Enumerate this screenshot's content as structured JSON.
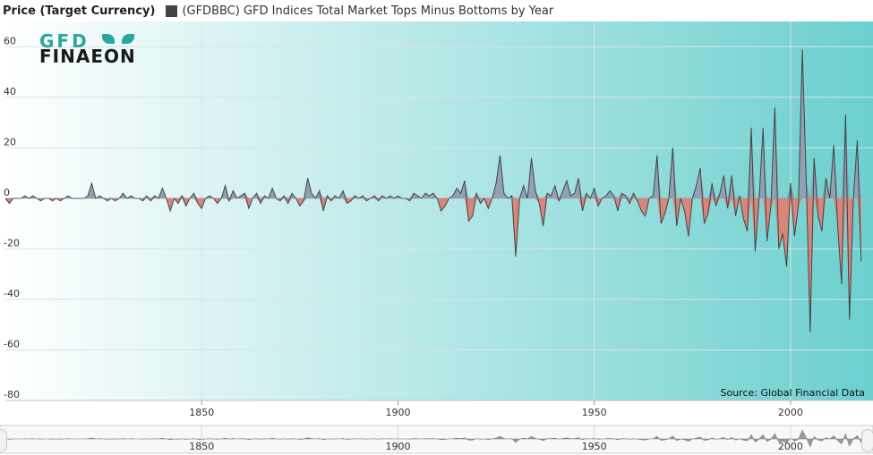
{
  "header": {
    "y_title": "Price (Target Currency)",
    "legend_label": "(GFDBBC) GFD Indices Total Market Tops Minus Bottoms by Year",
    "legend_color": "#444444"
  },
  "logo": {
    "line1": "GFD",
    "line2": "FINAEON"
  },
  "source": "Source: Global Financial Data",
  "colors": {
    "positive_fill": "#8fa1b3",
    "negative_fill": "#d7867c",
    "line": "#444444",
    "bg_left": "#ffffff",
    "bg_right": "#6ccfcf"
  },
  "chart_data": {
    "type": "area",
    "title": "(GFDBBC) GFD Indices Total Market Tops Minus Bottoms by Year",
    "ylabel": "Price (Target Currency)",
    "xlabel": "",
    "xlim": [
      1800,
      2021
    ],
    "ylim": [
      -80,
      70
    ],
    "x_ticks": [
      1850,
      1900,
      1950,
      2000
    ],
    "y_ticks": [
      60,
      40,
      20,
      0,
      -20,
      -40,
      -60,
      -80
    ],
    "grid": true,
    "legend": "top-left",
    "points": [
      [
        1800,
        0
      ],
      [
        1801,
        -2
      ],
      [
        1802,
        0
      ],
      [
        1803,
        0
      ],
      [
        1804,
        0
      ],
      [
        1805,
        1
      ],
      [
        1806,
        0
      ],
      [
        1807,
        1
      ],
      [
        1808,
        0
      ],
      [
        1809,
        -1
      ],
      [
        1810,
        0
      ],
      [
        1811,
        0
      ],
      [
        1812,
        -1
      ],
      [
        1813,
        0
      ],
      [
        1814,
        -1
      ],
      [
        1815,
        0
      ],
      [
        1816,
        1
      ],
      [
        1817,
        0
      ],
      [
        1818,
        0
      ],
      [
        1819,
        0
      ],
      [
        1820,
        0
      ],
      [
        1821,
        1
      ],
      [
        1822,
        6
      ],
      [
        1823,
        0
      ],
      [
        1824,
        1
      ],
      [
        1825,
        0
      ],
      [
        1826,
        -1
      ],
      [
        1827,
        0
      ],
      [
        1828,
        -1
      ],
      [
        1829,
        0
      ],
      [
        1830,
        2
      ],
      [
        1831,
        0
      ],
      [
        1832,
        1
      ],
      [
        1833,
        0
      ],
      [
        1834,
        0
      ],
      [
        1835,
        -1
      ],
      [
        1836,
        1
      ],
      [
        1837,
        -1
      ],
      [
        1838,
        1
      ],
      [
        1839,
        0
      ],
      [
        1840,
        4
      ],
      [
        1841,
        0
      ],
      [
        1842,
        -5
      ],
      [
        1843,
        0
      ],
      [
        1844,
        -2
      ],
      [
        1845,
        1
      ],
      [
        1846,
        -3
      ],
      [
        1847,
        0
      ],
      [
        1848,
        2
      ],
      [
        1849,
        -2
      ],
      [
        1850,
        -4
      ],
      [
        1851,
        0
      ],
      [
        1852,
        1
      ],
      [
        1853,
        0
      ],
      [
        1854,
        -2
      ],
      [
        1855,
        0
      ],
      [
        1856,
        5
      ],
      [
        1857,
        -1
      ],
      [
        1858,
        3
      ],
      [
        1859,
        0
      ],
      [
        1860,
        1
      ],
      [
        1861,
        2
      ],
      [
        1862,
        -4
      ],
      [
        1863,
        0
      ],
      [
        1864,
        2
      ],
      [
        1865,
        -2
      ],
      [
        1866,
        1
      ],
      [
        1867,
        0
      ],
      [
        1868,
        4
      ],
      [
        1869,
        0
      ],
      [
        1870,
        -1
      ],
      [
        1871,
        1
      ],
      [
        1872,
        -2
      ],
      [
        1873,
        2
      ],
      [
        1874,
        0
      ],
      [
        1875,
        -3
      ],
      [
        1876,
        -1
      ],
      [
        1877,
        8
      ],
      [
        1878,
        2
      ],
      [
        1879,
        0
      ],
      [
        1880,
        3
      ],
      [
        1881,
        -5
      ],
      [
        1882,
        1
      ],
      [
        1883,
        -1
      ],
      [
        1884,
        1
      ],
      [
        1885,
        0
      ],
      [
        1886,
        3
      ],
      [
        1887,
        -2
      ],
      [
        1888,
        -1
      ],
      [
        1889,
        1
      ],
      [
        1890,
        0
      ],
      [
        1891,
        1
      ],
      [
        1892,
        -1
      ],
      [
        1893,
        0
      ],
      [
        1894,
        1
      ],
      [
        1895,
        -1
      ],
      [
        1896,
        1
      ],
      [
        1897,
        0
      ],
      [
        1898,
        1
      ],
      [
        1899,
        0
      ],
      [
        1900,
        1
      ],
      [
        1901,
        0
      ],
      [
        1902,
        0
      ],
      [
        1903,
        -1
      ],
      [
        1904,
        2
      ],
      [
        1905,
        1
      ],
      [
        1906,
        0
      ],
      [
        1907,
        2
      ],
      [
        1908,
        1
      ],
      [
        1909,
        2
      ],
      [
        1910,
        0
      ],
      [
        1911,
        -5
      ],
      [
        1912,
        -3
      ],
      [
        1913,
        0
      ],
      [
        1914,
        1
      ],
      [
        1915,
        4
      ],
      [
        1916,
        2
      ],
      [
        1917,
        7
      ],
      [
        1918,
        -9
      ],
      [
        1919,
        -7
      ],
      [
        1920,
        2
      ],
      [
        1921,
        -2
      ],
      [
        1922,
        0
      ],
      [
        1923,
        -4
      ],
      [
        1924,
        0
      ],
      [
        1925,
        6
      ],
      [
        1926,
        17
      ],
      [
        1927,
        2
      ],
      [
        1928,
        0
      ],
      [
        1929,
        1
      ],
      [
        1930,
        -23
      ],
      [
        1931,
        0
      ],
      [
        1932,
        5
      ],
      [
        1933,
        0
      ],
      [
        1934,
        16
      ],
      [
        1935,
        3
      ],
      [
        1936,
        -2
      ],
      [
        1937,
        -11
      ],
      [
        1938,
        2
      ],
      [
        1939,
        1
      ],
      [
        1940,
        5
      ],
      [
        1941,
        -1
      ],
      [
        1942,
        3
      ],
      [
        1943,
        7
      ],
      [
        1944,
        1
      ],
      [
        1945,
        2
      ],
      [
        1946,
        8
      ],
      [
        1947,
        -5
      ],
      [
        1948,
        2
      ],
      [
        1949,
        0
      ],
      [
        1950,
        4
      ],
      [
        1951,
        -3
      ],
      [
        1952,
        0
      ],
      [
        1953,
        1
      ],
      [
        1954,
        3
      ],
      [
        1955,
        1
      ],
      [
        1956,
        -5
      ],
      [
        1957,
        2
      ],
      [
        1958,
        1
      ],
      [
        1959,
        -2
      ],
      [
        1960,
        2
      ],
      [
        1961,
        -1
      ],
      [
        1962,
        -5
      ],
      [
        1963,
        -7
      ],
      [
        1964,
        0
      ],
      [
        1965,
        1
      ],
      [
        1966,
        17
      ],
      [
        1967,
        -10
      ],
      [
        1968,
        -6
      ],
      [
        1969,
        0
      ],
      [
        1970,
        20
      ],
      [
        1971,
        -11
      ],
      [
        1972,
        0
      ],
      [
        1973,
        -5
      ],
      [
        1974,
        -15
      ],
      [
        1975,
        0
      ],
      [
        1976,
        5
      ],
      [
        1977,
        12
      ],
      [
        1978,
        -10
      ],
      [
        1979,
        -6
      ],
      [
        1980,
        6
      ],
      [
        1981,
        -3
      ],
      [
        1982,
        2
      ],
      [
        1983,
        9
      ],
      [
        1984,
        -4
      ],
      [
        1985,
        9
      ],
      [
        1986,
        -7
      ],
      [
        1987,
        1
      ],
      [
        1988,
        -8
      ],
      [
        1989,
        -13
      ],
      [
        1990,
        28
      ],
      [
        1991,
        -21
      ],
      [
        1992,
        0
      ],
      [
        1993,
        28
      ],
      [
        1994,
        -17
      ],
      [
        1995,
        -3
      ],
      [
        1996,
        36
      ],
      [
        1997,
        -20
      ],
      [
        1998,
        -14
      ],
      [
        1999,
        -27
      ],
      [
        2000,
        6
      ],
      [
        2001,
        -15
      ],
      [
        2002,
        -3
      ],
      [
        2003,
        59
      ],
      [
        2004,
        7
      ],
      [
        2005,
        -53
      ],
      [
        2006,
        16
      ],
      [
        2007,
        -7
      ],
      [
        2008,
        -13
      ],
      [
        2009,
        8
      ],
      [
        2010,
        0
      ],
      [
        2011,
        21
      ],
      [
        2012,
        -11
      ],
      [
        2013,
        -34
      ],
      [
        2014,
        33
      ],
      [
        2015,
        -48
      ],
      [
        2016,
        0
      ],
      [
        2017,
        23
      ],
      [
        2018,
        -25
      ]
    ]
  },
  "navigator": {
    "x_ticks": [
      1850,
      1900,
      1950,
      2000
    ]
  }
}
